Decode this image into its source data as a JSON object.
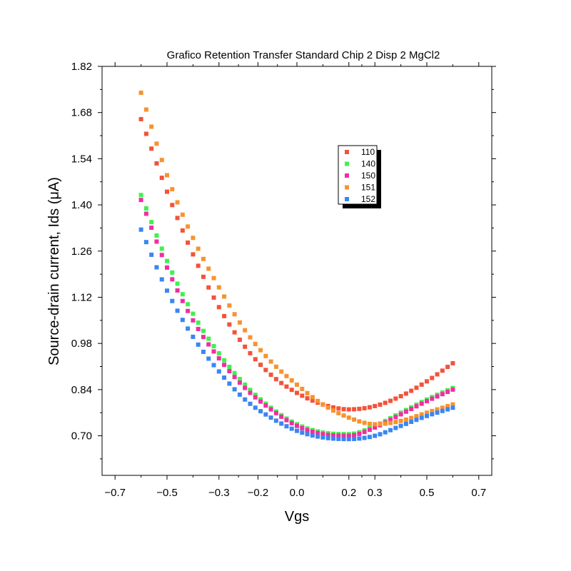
{
  "chart_data": {
    "type": "scatter",
    "title": "Grafico Retention Transfer Standard Chip 2 Disp 2 MgCl2",
    "xlabel": "Vgs",
    "ylabel": "Source-drain current, Ids (μA)",
    "xlim": [
      -0.75,
      0.75
    ],
    "ylim": [
      0.58,
      1.82
    ],
    "x_ticks": [
      "−0.7",
      "−0.5",
      "−0.3",
      "−0.2",
      "0.0",
      "0.2",
      "0.3",
      "0.5",
      "0.7"
    ],
    "x_tick_values": [
      -0.7,
      -0.5,
      -0.3,
      -0.15,
      0.0,
      0.2,
      0.3,
      0.5,
      0.7
    ],
    "y_ticks": [
      "0.70",
      "0.84",
      "0.98",
      "1.12",
      "1.26",
      "1.40",
      "1.54",
      "1.68",
      "1.82"
    ],
    "y_tick_values": [
      0.7,
      0.84,
      0.98,
      1.12,
      1.26,
      1.4,
      1.54,
      1.68,
      1.82
    ],
    "legend_position": "upper-right",
    "grid": false,
    "x_points": {
      "start": -0.6,
      "end": 0.6,
      "count": 61
    },
    "series": [
      {
        "name": "110",
        "color": "#f4523a",
        "anchors": [
          [
            -0.6,
            1.66
          ],
          [
            -0.5,
            1.44
          ],
          [
            -0.4,
            1.25
          ],
          [
            -0.3,
            1.09
          ],
          [
            -0.2,
            0.97
          ],
          [
            -0.1,
            0.885
          ],
          [
            0.0,
            0.83
          ],
          [
            0.1,
            0.795
          ],
          [
            0.2,
            0.78
          ],
          [
            0.3,
            0.79
          ],
          [
            0.4,
            0.82
          ],
          [
            0.5,
            0.865
          ],
          [
            0.6,
            0.92
          ]
        ]
      },
      {
        "name": "140",
        "color": "#3ef24e",
        "anchors": [
          [
            -0.6,
            1.43
          ],
          [
            -0.5,
            1.23
          ],
          [
            -0.4,
            1.07
          ],
          [
            -0.3,
            0.95
          ],
          [
            -0.2,
            0.855
          ],
          [
            -0.1,
            0.785
          ],
          [
            0.0,
            0.735
          ],
          [
            0.1,
            0.71
          ],
          [
            0.2,
            0.705
          ],
          [
            0.3,
            0.73
          ],
          [
            0.4,
            0.77
          ],
          [
            0.5,
            0.81
          ],
          [
            0.6,
            0.845
          ]
        ]
      },
      {
        "name": "150",
        "color": "#f02ea0",
        "anchors": [
          [
            -0.6,
            1.415
          ],
          [
            -0.5,
            1.21
          ],
          [
            -0.4,
            1.05
          ],
          [
            -0.3,
            0.935
          ],
          [
            -0.2,
            0.845
          ],
          [
            -0.1,
            0.78
          ],
          [
            0.0,
            0.73
          ],
          [
            0.1,
            0.705
          ],
          [
            0.2,
            0.7
          ],
          [
            0.3,
            0.725
          ],
          [
            0.4,
            0.765
          ],
          [
            0.5,
            0.805
          ],
          [
            0.6,
            0.84
          ]
        ]
      },
      {
        "name": "151",
        "color": "#f8922e",
        "anchors": [
          [
            -0.6,
            1.74
          ],
          [
            -0.5,
            1.49
          ],
          [
            -0.4,
            1.3
          ],
          [
            -0.3,
            1.15
          ],
          [
            -0.2,
            1.02
          ],
          [
            -0.1,
            0.925
          ],
          [
            0.0,
            0.855
          ],
          [
            0.1,
            0.795
          ],
          [
            0.2,
            0.755
          ],
          [
            0.3,
            0.735
          ],
          [
            0.4,
            0.745
          ],
          [
            0.5,
            0.77
          ],
          [
            0.6,
            0.795
          ]
        ]
      },
      {
        "name": "152",
        "color": "#3a86f2",
        "anchors": [
          [
            -0.6,
            1.325
          ],
          [
            -0.5,
            1.14
          ],
          [
            -0.4,
            1.0
          ],
          [
            -0.3,
            0.895
          ],
          [
            -0.2,
            0.81
          ],
          [
            -0.1,
            0.755
          ],
          [
            0.0,
            0.715
          ],
          [
            0.1,
            0.695
          ],
          [
            0.2,
            0.69
          ],
          [
            0.3,
            0.7
          ],
          [
            0.4,
            0.73
          ],
          [
            0.5,
            0.76
          ],
          [
            0.6,
            0.785
          ]
        ]
      }
    ]
  }
}
